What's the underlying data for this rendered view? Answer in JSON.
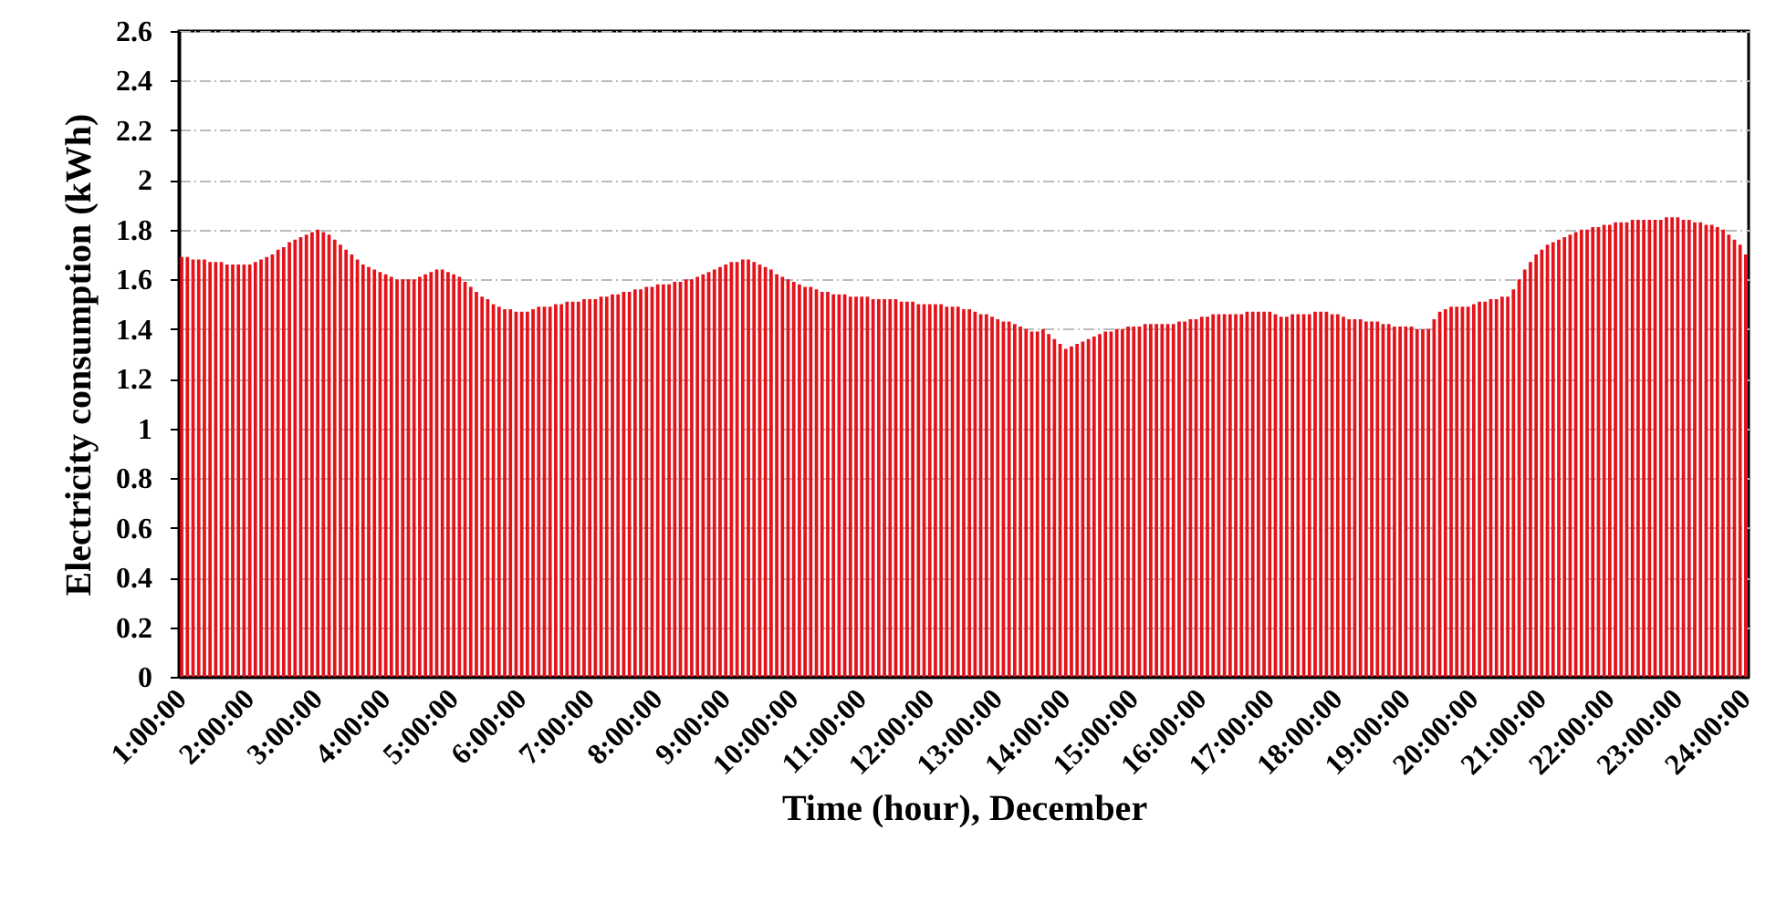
{
  "chart_data": {
    "type": "bar",
    "xlabel": "Time (hour), December",
    "ylabel": "Electricity consumption (kWh)",
    "categories": [
      "1:00:00",
      null,
      null,
      null,
      null,
      null,
      null,
      null,
      null,
      null,
      null,
      null,
      "2:00:00",
      null,
      null,
      null,
      null,
      null,
      null,
      null,
      null,
      null,
      null,
      null,
      "3:00:00",
      null,
      null,
      null,
      null,
      null,
      null,
      null,
      null,
      null,
      null,
      null,
      "4:00:00",
      null,
      null,
      null,
      null,
      null,
      null,
      null,
      null,
      null,
      null,
      null,
      "5:00:00",
      null,
      null,
      null,
      null,
      null,
      null,
      null,
      null,
      null,
      null,
      null,
      "6:00:00",
      null,
      null,
      null,
      null,
      null,
      null,
      null,
      null,
      null,
      null,
      null,
      "7:00:00",
      null,
      null,
      null,
      null,
      null,
      null,
      null,
      null,
      null,
      null,
      null,
      "8:00:00",
      null,
      null,
      null,
      null,
      null,
      null,
      null,
      null,
      null,
      null,
      null,
      "9:00:00",
      null,
      null,
      null,
      null,
      null,
      null,
      null,
      null,
      null,
      null,
      null,
      "10:00:00",
      null,
      null,
      null,
      null,
      null,
      null,
      null,
      null,
      null,
      null,
      null,
      "11:00:00",
      null,
      null,
      null,
      null,
      null,
      null,
      null,
      null,
      null,
      null,
      null,
      "12:00:00",
      null,
      null,
      null,
      null,
      null,
      null,
      null,
      null,
      null,
      null,
      null,
      "13:00:00",
      null,
      null,
      null,
      null,
      null,
      null,
      null,
      null,
      null,
      null,
      null,
      "14:00:00",
      null,
      null,
      null,
      null,
      null,
      null,
      null,
      null,
      null,
      null,
      null,
      "15:00:00",
      null,
      null,
      null,
      null,
      null,
      null,
      null,
      null,
      null,
      null,
      null,
      "16:00:00",
      null,
      null,
      null,
      null,
      null,
      null,
      null,
      null,
      null,
      null,
      null,
      "17:00:00",
      null,
      null,
      null,
      null,
      null,
      null,
      null,
      null,
      null,
      null,
      null,
      "18:00:00",
      null,
      null,
      null,
      null,
      null,
      null,
      null,
      null,
      null,
      null,
      null,
      "19:00:00",
      null,
      null,
      null,
      null,
      null,
      null,
      null,
      null,
      null,
      null,
      null,
      "20:00:00",
      null,
      null,
      null,
      null,
      null,
      null,
      null,
      null,
      null,
      null,
      null,
      "21:00:00",
      null,
      null,
      null,
      null,
      null,
      null,
      null,
      null,
      null,
      null,
      null,
      "22:00:00",
      null,
      null,
      null,
      null,
      null,
      null,
      null,
      null,
      null,
      null,
      null,
      "23:00:00",
      null,
      null,
      null,
      null,
      null,
      null,
      null,
      null,
      null,
      null,
      null,
      "24:00:00"
    ],
    "values": [
      1.69,
      1.69,
      1.68,
      1.68,
      1.68,
      1.67,
      1.67,
      1.67,
      1.66,
      1.66,
      1.66,
      1.66,
      1.66,
      1.67,
      1.68,
      1.69,
      1.7,
      1.72,
      1.73,
      1.75,
      1.76,
      1.77,
      1.78,
      1.79,
      1.8,
      1.79,
      1.78,
      1.76,
      1.74,
      1.72,
      1.7,
      1.68,
      1.66,
      1.65,
      1.64,
      1.63,
      1.62,
      1.61,
      1.6,
      1.6,
      1.6,
      1.6,
      1.61,
      1.62,
      1.63,
      1.64,
      1.64,
      1.63,
      1.62,
      1.61,
      1.59,
      1.57,
      1.55,
      1.53,
      1.52,
      1.5,
      1.49,
      1.48,
      1.48,
      1.47,
      1.47,
      1.47,
      1.48,
      1.49,
      1.49,
      1.49,
      1.5,
      1.5,
      1.51,
      1.51,
      1.51,
      1.52,
      1.52,
      1.52,
      1.53,
      1.53,
      1.54,
      1.54,
      1.55,
      1.55,
      1.56,
      1.56,
      1.57,
      1.57,
      1.58,
      1.58,
      1.58,
      1.59,
      1.59,
      1.6,
      1.6,
      1.61,
      1.62,
      1.63,
      1.64,
      1.65,
      1.66,
      1.67,
      1.67,
      1.68,
      1.68,
      1.67,
      1.66,
      1.65,
      1.64,
      1.62,
      1.61,
      1.6,
      1.59,
      1.58,
      1.57,
      1.57,
      1.56,
      1.55,
      1.55,
      1.54,
      1.54,
      1.54,
      1.53,
      1.53,
      1.53,
      1.53,
      1.52,
      1.52,
      1.52,
      1.52,
      1.52,
      1.51,
      1.51,
      1.51,
      1.5,
      1.5,
      1.5,
      1.5,
      1.5,
      1.49,
      1.49,
      1.49,
      1.48,
      1.48,
      1.47,
      1.46,
      1.46,
      1.45,
      1.44,
      1.43,
      1.43,
      1.42,
      1.41,
      1.4,
      1.39,
      1.39,
      1.4,
      1.38,
      1.36,
      1.34,
      1.32,
      1.33,
      1.34,
      1.35,
      1.36,
      1.37,
      1.38,
      1.39,
      1.39,
      1.4,
      1.4,
      1.41,
      1.41,
      1.41,
      1.42,
      1.42,
      1.42,
      1.42,
      1.42,
      1.42,
      1.43,
      1.43,
      1.44,
      1.44,
      1.45,
      1.45,
      1.46,
      1.46,
      1.46,
      1.46,
      1.46,
      1.46,
      1.47,
      1.47,
      1.47,
      1.47,
      1.47,
      1.46,
      1.45,
      1.45,
      1.46,
      1.46,
      1.46,
      1.46,
      1.47,
      1.47,
      1.47,
      1.46,
      1.46,
      1.45,
      1.44,
      1.44,
      1.44,
      1.43,
      1.43,
      1.43,
      1.42,
      1.42,
      1.41,
      1.41,
      1.41,
      1.41,
      1.4,
      1.4,
      1.4,
      1.44,
      1.47,
      1.48,
      1.49,
      1.49,
      1.49,
      1.49,
      1.5,
      1.51,
      1.51,
      1.52,
      1.52,
      1.53,
      1.53,
      1.56,
      1.6,
      1.64,
      1.67,
      1.7,
      1.72,
      1.74,
      1.75,
      1.76,
      1.77,
      1.78,
      1.79,
      1.8,
      1.8,
      1.81,
      1.81,
      1.82,
      1.82,
      1.83,
      1.83,
      1.83,
      1.84,
      1.84,
      1.84,
      1.84,
      1.84,
      1.84,
      1.85,
      1.85,
      1.85,
      1.84,
      1.84,
      1.83,
      1.83,
      1.82,
      1.82,
      1.81,
      1.8,
      1.78,
      1.76,
      1.74,
      1.7
    ],
    "color": "#e3131b",
    "ylim": [
      0,
      2.6
    ],
    "yticks": [
      0,
      0.2,
      0.4,
      0.6,
      0.8,
      1,
      1.2,
      1.4,
      1.6,
      1.8,
      2,
      2.2,
      2.4,
      2.6
    ],
    "grid": "y"
  }
}
